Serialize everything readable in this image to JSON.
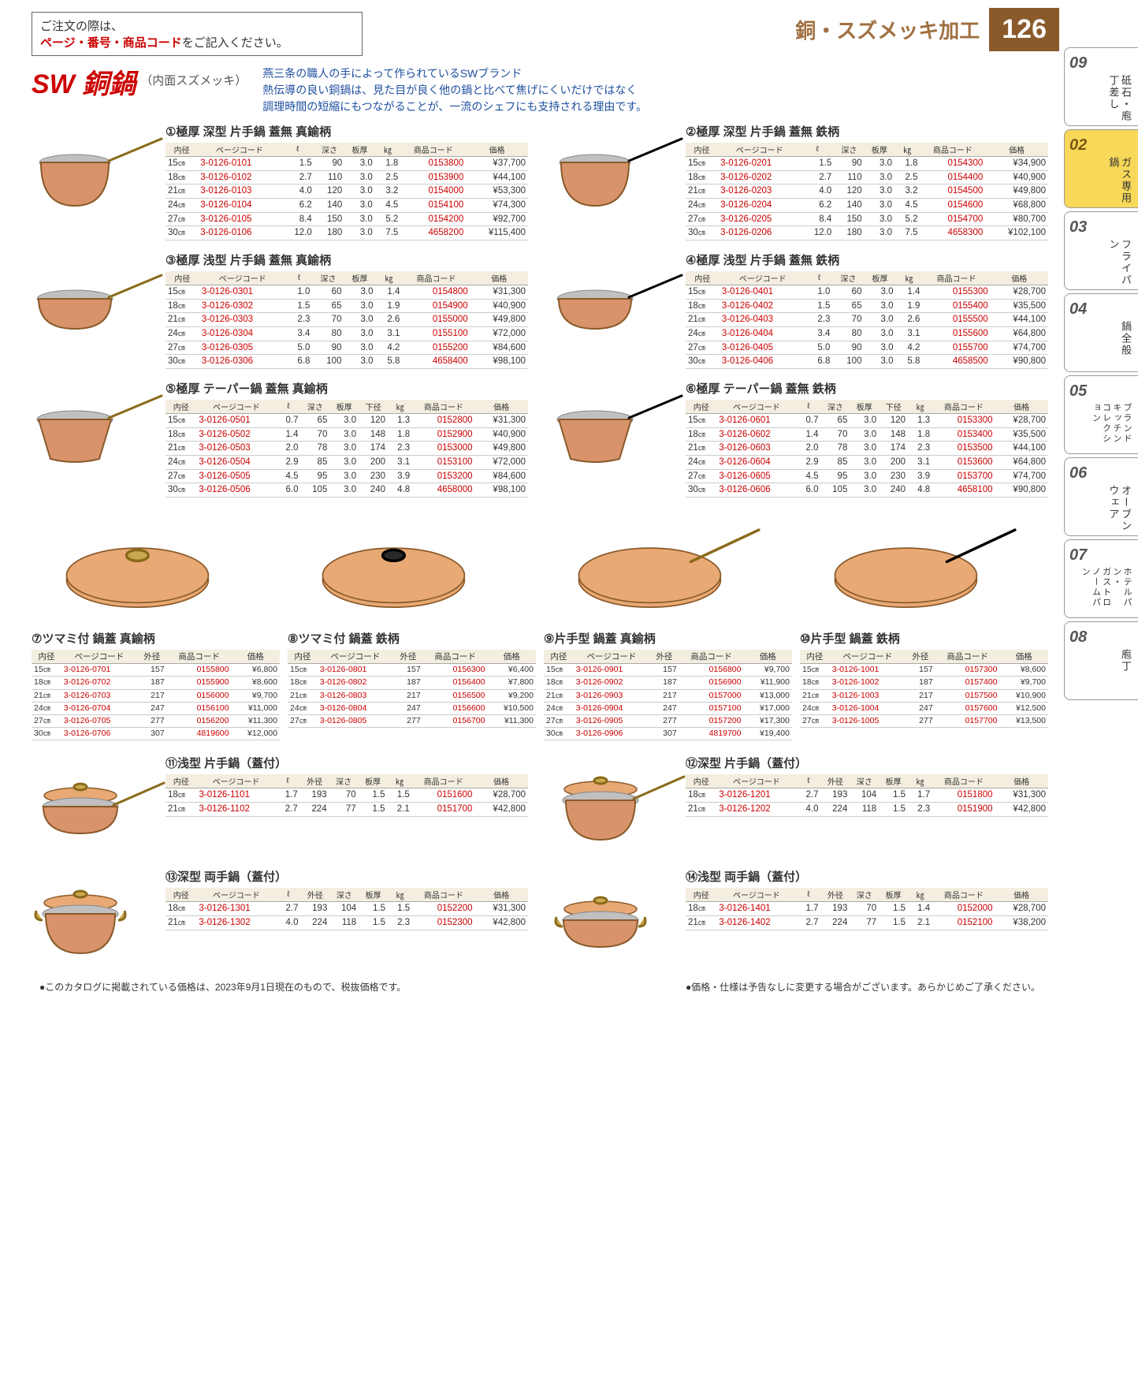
{
  "order_note_1": "ご注文の際は、",
  "order_note_red": "ページ・番号・商品コード",
  "order_note_2": "をご記入ください。",
  "hdr_cat": "銅・スズメッキ加工",
  "page_num": "126",
  "sw_title": "SW 銅鍋",
  "sw_sub": "（内面スズメッキ）",
  "blue1": "燕三条の職人の手によって作られているSWブランド",
  "blue2": "熱伝導の良い銅鍋は、見た目が良く他の鍋と比べて焦げにくいだけではなく",
  "blue3": "調理時間の短縮にもつながることが、一流のシェフにも支持される理由です。",
  "cols6": [
    "内径",
    "ページコード",
    "ℓ",
    "深さ",
    "板厚",
    "㎏",
    "商品コード",
    "価格"
  ],
  "cols6b": [
    "内径",
    "ページコード",
    "ℓ",
    "深さ",
    "板厚",
    "下径",
    "㎏",
    "商品コード",
    "価格"
  ],
  "cols_lid": [
    "内径",
    "ページコード",
    "外径",
    "商品コード",
    "価格"
  ],
  "cols_lidpot": [
    "内径",
    "ページコード",
    "ℓ",
    "外径",
    "深さ",
    "板厚",
    "㎏",
    "商品コード",
    "価格"
  ],
  "products": [
    {
      "n": "①",
      "nm": "極厚 深型 片手鍋 蓋無 真鍮柄",
      "handle": "brass",
      "shape": "deep",
      "cols": "cols6",
      "rows": [
        [
          "15",
          "3-0126-0101",
          "1.5",
          "90",
          "3.0",
          "1.8",
          "0153800",
          "¥37,700"
        ],
        [
          "18",
          "3-0126-0102",
          "2.7",
          "110",
          "3.0",
          "2.5",
          "0153900",
          "¥44,100"
        ],
        [
          "21",
          "3-0126-0103",
          "4.0",
          "120",
          "3.0",
          "3.2",
          "0154000",
          "¥53,300"
        ],
        [
          "24",
          "3-0126-0104",
          "6.2",
          "140",
          "3.0",
          "4.5",
          "0154100",
          "¥74,300"
        ],
        [
          "27",
          "3-0126-0105",
          "8.4",
          "150",
          "3.0",
          "5.2",
          "0154200",
          "¥92,700"
        ],
        [
          "30",
          "3-0126-0106",
          "12.0",
          "180",
          "3.0",
          "7.5",
          "4658200",
          "¥115,400"
        ]
      ]
    },
    {
      "n": "②",
      "nm": "極厚 深型 片手鍋 蓋無 鉄柄",
      "handle": "iron",
      "shape": "deep",
      "cols": "cols6",
      "rows": [
        [
          "15",
          "3-0126-0201",
          "1.5",
          "90",
          "3.0",
          "1.8",
          "0154300",
          "¥34,900"
        ],
        [
          "18",
          "3-0126-0202",
          "2.7",
          "110",
          "3.0",
          "2.5",
          "0154400",
          "¥40,900"
        ],
        [
          "21",
          "3-0126-0203",
          "4.0",
          "120",
          "3.0",
          "3.2",
          "0154500",
          "¥49,800"
        ],
        [
          "24",
          "3-0126-0204",
          "6.2",
          "140",
          "3.0",
          "4.5",
          "0154600",
          "¥68,800"
        ],
        [
          "27",
          "3-0126-0205",
          "8.4",
          "150",
          "3.0",
          "5.2",
          "0154700",
          "¥80,700"
        ],
        [
          "30",
          "3-0126-0206",
          "12.0",
          "180",
          "3.0",
          "7.5",
          "4658300",
          "¥102,100"
        ]
      ]
    },
    {
      "n": "③",
      "nm": "極厚 浅型 片手鍋 蓋無 真鍮柄",
      "handle": "brass",
      "shape": "shallow",
      "cols": "cols6",
      "rows": [
        [
          "15",
          "3-0126-0301",
          "1.0",
          "60",
          "3.0",
          "1.4",
          "0154800",
          "¥31,300"
        ],
        [
          "18",
          "3-0126-0302",
          "1.5",
          "65",
          "3.0",
          "1.9",
          "0154900",
          "¥40,900"
        ],
        [
          "21",
          "3-0126-0303",
          "2.3",
          "70",
          "3.0",
          "2.6",
          "0155000",
          "¥49,800"
        ],
        [
          "24",
          "3-0126-0304",
          "3.4",
          "80",
          "3.0",
          "3.1",
          "0155100",
          "¥72,000"
        ],
        [
          "27",
          "3-0126-0305",
          "5.0",
          "90",
          "3.0",
          "4.2",
          "0155200",
          "¥84,600"
        ],
        [
          "30",
          "3-0126-0306",
          "6.8",
          "100",
          "3.0",
          "5.8",
          "4658400",
          "¥98,100"
        ]
      ]
    },
    {
      "n": "④",
      "nm": "極厚 浅型 片手鍋 蓋無 鉄柄",
      "handle": "iron",
      "shape": "shallow",
      "cols": "cols6",
      "rows": [
        [
          "15",
          "3-0126-0401",
          "1.0",
          "60",
          "3.0",
          "1.4",
          "0155300",
          "¥28,700"
        ],
        [
          "18",
          "3-0126-0402",
          "1.5",
          "65",
          "3.0",
          "1.9",
          "0155400",
          "¥35,500"
        ],
        [
          "21",
          "3-0126-0403",
          "2.3",
          "70",
          "3.0",
          "2.6",
          "0155500",
          "¥44,100"
        ],
        [
          "24",
          "3-0126-0404",
          "3.4",
          "80",
          "3.0",
          "3.1",
          "0155600",
          "¥64,800"
        ],
        [
          "27",
          "3-0126-0405",
          "5.0",
          "90",
          "3.0",
          "4.2",
          "0155700",
          "¥74,700"
        ],
        [
          "30",
          "3-0126-0406",
          "6.8",
          "100",
          "3.0",
          "5.8",
          "4658500",
          "¥90,800"
        ]
      ]
    },
    {
      "n": "⑤",
      "nm": "極厚 テーパー鍋 蓋無 真鍮柄",
      "handle": "brass",
      "shape": "taper",
      "cols": "cols6b",
      "rows": [
        [
          "15",
          "3-0126-0501",
          "0.7",
          "65",
          "3.0",
          "120",
          "1.3",
          "0152800",
          "¥31,300"
        ],
        [
          "18",
          "3-0126-0502",
          "1.4",
          "70",
          "3.0",
          "148",
          "1.8",
          "0152900",
          "¥40,900"
        ],
        [
          "21",
          "3-0126-0503",
          "2.0",
          "78",
          "3.0",
          "174",
          "2.3",
          "0153000",
          "¥49,800"
        ],
        [
          "24",
          "3-0126-0504",
          "2.9",
          "85",
          "3.0",
          "200",
          "3.1",
          "0153100",
          "¥72,000"
        ],
        [
          "27",
          "3-0126-0505",
          "4.5",
          "95",
          "3.0",
          "230",
          "3.9",
          "0153200",
          "¥84,600"
        ],
        [
          "30",
          "3-0126-0506",
          "6.0",
          "105",
          "3.0",
          "240",
          "4.8",
          "4658000",
          "¥98,100"
        ]
      ]
    },
    {
      "n": "⑥",
      "nm": "極厚 テーパー鍋 蓋無 鉄柄",
      "handle": "iron",
      "shape": "taper",
      "cols": "cols6b",
      "rows": [
        [
          "15",
          "3-0126-0601",
          "0.7",
          "65",
          "3.0",
          "120",
          "1.3",
          "0153300",
          "¥28,700"
        ],
        [
          "18",
          "3-0126-0602",
          "1.4",
          "70",
          "3.0",
          "148",
          "1.8",
          "0153400",
          "¥35,500"
        ],
        [
          "21",
          "3-0126-0603",
          "2.0",
          "78",
          "3.0",
          "174",
          "2.3",
          "0153500",
          "¥44,100"
        ],
        [
          "24",
          "3-0126-0604",
          "2.9",
          "85",
          "3.0",
          "200",
          "3.1",
          "0153600",
          "¥64,800"
        ],
        [
          "27",
          "3-0126-0605",
          "4.5",
          "95",
          "3.0",
          "230",
          "3.9",
          "0153700",
          "¥74,700"
        ],
        [
          "30",
          "3-0126-0606",
          "6.0",
          "105",
          "3.0",
          "240",
          "4.8",
          "4658100",
          "¥90,800"
        ]
      ]
    }
  ],
  "lids": [
    {
      "n": "⑦",
      "nm": "ツマミ付 鍋蓋 真鍮柄",
      "knob": "brass",
      "rows": [
        [
          "15",
          "3-0126-0701",
          "157",
          "0155800",
          "¥6,800"
        ],
        [
          "18",
          "3-0126-0702",
          "187",
          "0155900",
          "¥8,600"
        ],
        [
          "21",
          "3-0126-0703",
          "217",
          "0156000",
          "¥9,700"
        ],
        [
          "24",
          "3-0126-0704",
          "247",
          "0156100",
          "¥11,000"
        ],
        [
          "27",
          "3-0126-0705",
          "277",
          "0156200",
          "¥11,300"
        ],
        [
          "30",
          "3-0126-0706",
          "307",
          "4819600",
          "¥12,000"
        ]
      ]
    },
    {
      "n": "⑧",
      "nm": "ツマミ付 鍋蓋 鉄柄",
      "knob": "iron",
      "rows": [
        [
          "15",
          "3-0126-0801",
          "157",
          "0156300",
          "¥6,400"
        ],
        [
          "18",
          "3-0126-0802",
          "187",
          "0156400",
          "¥7,800"
        ],
        [
          "21",
          "3-0126-0803",
          "217",
          "0156500",
          "¥9,200"
        ],
        [
          "24",
          "3-0126-0804",
          "247",
          "0156600",
          "¥10,500"
        ],
        [
          "27",
          "3-0126-0805",
          "277",
          "0156700",
          "¥11,300"
        ]
      ]
    },
    {
      "n": "⑨",
      "nm": "片手型 鍋蓋 真鍮柄",
      "lhandle": "brass",
      "rows": [
        [
          "15",
          "3-0126-0901",
          "157",
          "0156800",
          "¥9,700"
        ],
        [
          "18",
          "3-0126-0902",
          "187",
          "0156900",
          "¥11,900"
        ],
        [
          "21",
          "3-0126-0903",
          "217",
          "0157000",
          "¥13,000"
        ],
        [
          "24",
          "3-0126-0904",
          "247",
          "0157100",
          "¥17,000"
        ],
        [
          "27",
          "3-0126-0905",
          "277",
          "0157200",
          "¥17,300"
        ],
        [
          "30",
          "3-0126-0906",
          "307",
          "4819700",
          "¥19,400"
        ]
      ]
    },
    {
      "n": "⑩",
      "nm": "片手型 鍋蓋 鉄柄",
      "lhandle": "iron",
      "rows": [
        [
          "15",
          "3-0126-1001",
          "157",
          "0157300",
          "¥8,600"
        ],
        [
          "18",
          "3-0126-1002",
          "187",
          "0157400",
          "¥9,700"
        ],
        [
          "21",
          "3-0126-1003",
          "217",
          "0157500",
          "¥10,900"
        ],
        [
          "24",
          "3-0126-1004",
          "247",
          "0157600",
          "¥12,500"
        ],
        [
          "27",
          "3-0126-1005",
          "277",
          "0157700",
          "¥13,500"
        ]
      ]
    }
  ],
  "lidpots": [
    {
      "n": "⑪",
      "nm": "浅型 片手鍋（蓋付）",
      "handle": "brass",
      "shape": "shallow",
      "rows": [
        [
          "18",
          "3-0126-1101",
          "1.7",
          "193",
          "70",
          "1.5",
          "1.5",
          "0151600",
          "¥28,700"
        ],
        [
          "21",
          "3-0126-1102",
          "2.7",
          "224",
          "77",
          "1.5",
          "2.1",
          "0151700",
          "¥42,800"
        ]
      ]
    },
    {
      "n": "⑫",
      "nm": "深型 片手鍋（蓋付）",
      "handle": "brass",
      "shape": "deep",
      "rows": [
        [
          "18",
          "3-0126-1201",
          "2.7",
          "193",
          "104",
          "1.5",
          "1.7",
          "0151800",
          "¥31,300"
        ],
        [
          "21",
          "3-0126-1202",
          "4.0",
          "224",
          "118",
          "1.5",
          "2.3",
          "0151900",
          "¥42,800"
        ]
      ]
    },
    {
      "n": "⑬",
      "nm": "深型 両手鍋（蓋付）",
      "shape": "deep2",
      "rows": [
        [
          "18",
          "3-0126-1301",
          "2.7",
          "193",
          "104",
          "1.5",
          "1.5",
          "0152200",
          "¥31,300"
        ],
        [
          "21",
          "3-0126-1302",
          "4.0",
          "224",
          "118",
          "1.5",
          "2.3",
          "0152300",
          "¥42,800"
        ]
      ]
    },
    {
      "n": "⑭",
      "nm": "浅型 両手鍋（蓋付）",
      "shape": "shallow2",
      "rows": [
        [
          "18",
          "3-0126-1401",
          "1.7",
          "193",
          "70",
          "1.5",
          "1.4",
          "0152000",
          "¥28,700"
        ],
        [
          "21",
          "3-0126-1402",
          "2.7",
          "224",
          "77",
          "1.5",
          "2.1",
          "0152100",
          "¥38,200"
        ]
      ]
    }
  ],
  "tabs": [
    {
      "num": "09",
      "label": "砥石・庖丁差し"
    },
    {
      "num": "02",
      "label": "ガス専用鍋",
      "active": true
    },
    {
      "num": "03",
      "label": "フライパン"
    },
    {
      "num": "04",
      "label": "鍋全般"
    },
    {
      "num": "05",
      "label": "ブランドキッチン\nコレクション",
      "small": true
    },
    {
      "num": "06",
      "label": "オーブンウェア"
    },
    {
      "num": "07",
      "label": "ホテルパン・\nガストロノームパン",
      "small": true
    },
    {
      "num": "08",
      "label": "庖丁"
    }
  ],
  "foot1": "●このカタログに掲載されている価格は、2023年9月1日現在のもので、税抜価格です。",
  "foot2": "●価格・仕様は予告なしに変更する場合がございます。あらかじめご了承ください。"
}
